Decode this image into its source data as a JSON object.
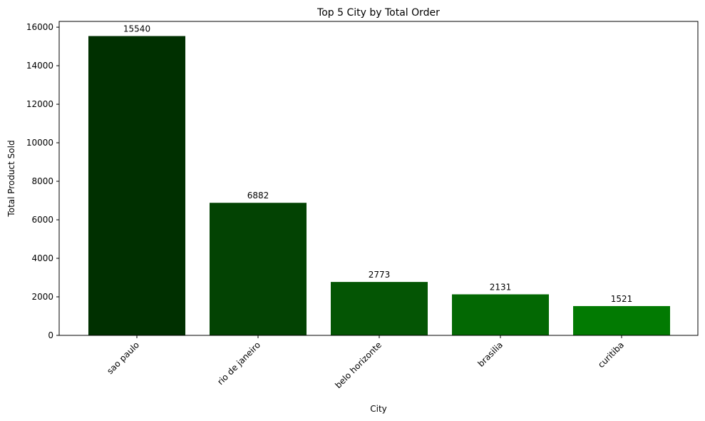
{
  "chart_data": {
    "type": "bar",
    "title": "Top 5 City by Total Order",
    "xlabel": "City",
    "ylabel": "Total Product Sold",
    "categories": [
      "sao paulo",
      "rio de janeiro",
      "belo horizonte",
      "brasilia",
      "curitiba"
    ],
    "values": [
      15540,
      6882,
      2773,
      2131,
      1521
    ],
    "ylim": [
      0,
      16300
    ],
    "yticks": [
      0,
      2000,
      4000,
      6000,
      8000,
      10000,
      12000,
      14000,
      16000
    ],
    "grid": false,
    "legend": "none",
    "bar_colors": [
      "#003000",
      "#034303",
      "#045504",
      "#036803",
      "#027a02"
    ]
  }
}
